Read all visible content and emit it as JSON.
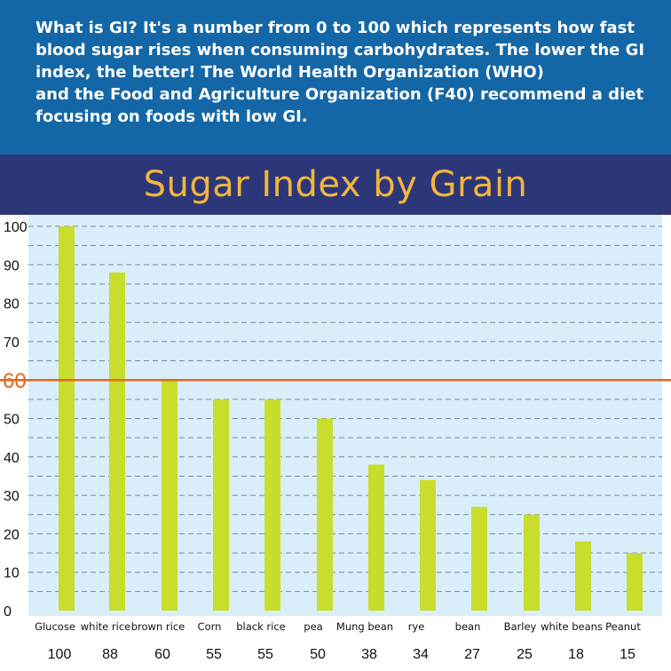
{
  "intro": {
    "lines": [
      "What is GI?  It's a number from 0 to 100 which represents how fast",
      "blood sugar rises when consuming carbohydrates. The lower the GI",
      "index, the better!  The World Health Organization (WHO)",
      "and the Food and Agriculture Organization (F40) recommend a diet",
      "focusing on foods with low GI."
    ]
  },
  "colors": {
    "intro_bg": "#1467a6",
    "title_bg": "#2c3779",
    "title_text": "#f4b43c",
    "plot_bg": "#d9eef9",
    "bar": "#c9dd2c",
    "reference_line": "#e8661b"
  },
  "chart_data": {
    "type": "bar",
    "title": "Sugar Index by Grain",
    "xlabel": "",
    "ylabel": "",
    "categories": [
      "Glucose",
      "white rice",
      "brown rice",
      "Corn",
      "black rice",
      "pea",
      "Mung bean",
      "rye",
      "bean",
      "Barley",
      "white beans",
      "Peanut"
    ],
    "values": [
      100,
      88,
      60,
      55,
      55,
      50,
      38,
      34,
      27,
      25,
      18,
      15
    ],
    "value_labels": [
      "100",
      "88",
      "60",
      "55",
      "55",
      "50",
      "38",
      "34",
      "27",
      "25",
      "18",
      "15"
    ],
    "ylim": [
      0,
      100
    ],
    "yticks": [
      0,
      10,
      20,
      30,
      40,
      50,
      60,
      70,
      80,
      90,
      100
    ],
    "ytick_labels": [
      "0",
      "10",
      "20",
      "30",
      "40",
      "50",
      "60",
      "70",
      "80",
      "90",
      "100"
    ],
    "grid": "dashed horizontal every 5",
    "reference_line": {
      "value": 60,
      "label": "60"
    }
  }
}
